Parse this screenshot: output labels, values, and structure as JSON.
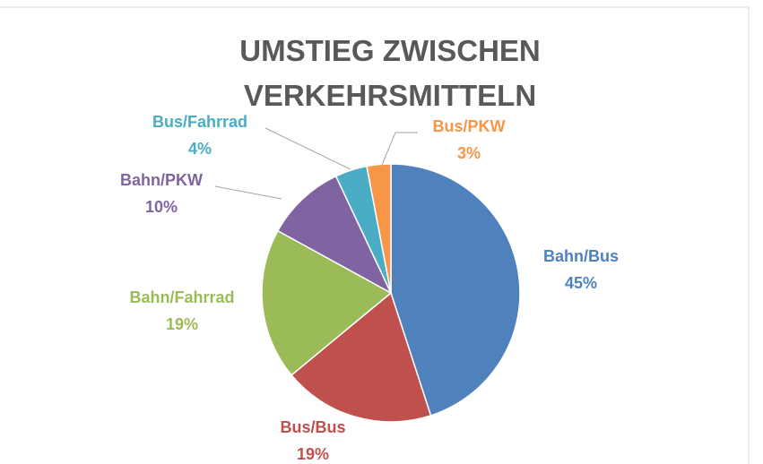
{
  "chart_data": {
    "type": "pie",
    "title": "UMSTIEG ZWISCHEN VERKEHRSMITTELN",
    "categories": [
      "Bahn/Bus",
      "Bus/Bus",
      "Bahn/Fahrrad",
      "Bahn/PKW",
      "Bus/Fahrrad",
      "Bus/PKW"
    ],
    "values": [
      45,
      19,
      19,
      10,
      4,
      3
    ],
    "value_labels": [
      "45%",
      "19%",
      "19%",
      "10%",
      "4%",
      "3%"
    ],
    "colors": [
      "#4f81bd",
      "#c0504d",
      "#9bbb59",
      "#8064a2",
      "#4bacc6",
      "#f79646"
    ]
  }
}
